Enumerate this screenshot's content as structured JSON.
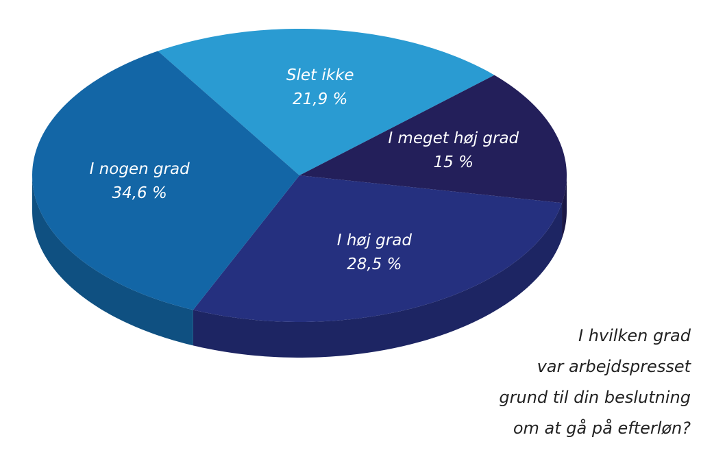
{
  "chart_data": {
    "type": "pie",
    "title": [
      "I hvilken grad",
      "var arbejdspresset",
      "grund til din beslutning",
      "om at gå på efterløn?"
    ],
    "categories": [
      "Slet ikke",
      "I meget høj grad",
      "I høj grad",
      "I nogen grad"
    ],
    "values": [
      21.9,
      15,
      28.5,
      34.6
    ],
    "value_labels": [
      "21,9 %",
      "15 %",
      "28,5 %",
      "34,6 %"
    ],
    "colors": [
      "#2a9bd2",
      "#231f5a",
      "#25307f",
      "#1366a6"
    ]
  }
}
